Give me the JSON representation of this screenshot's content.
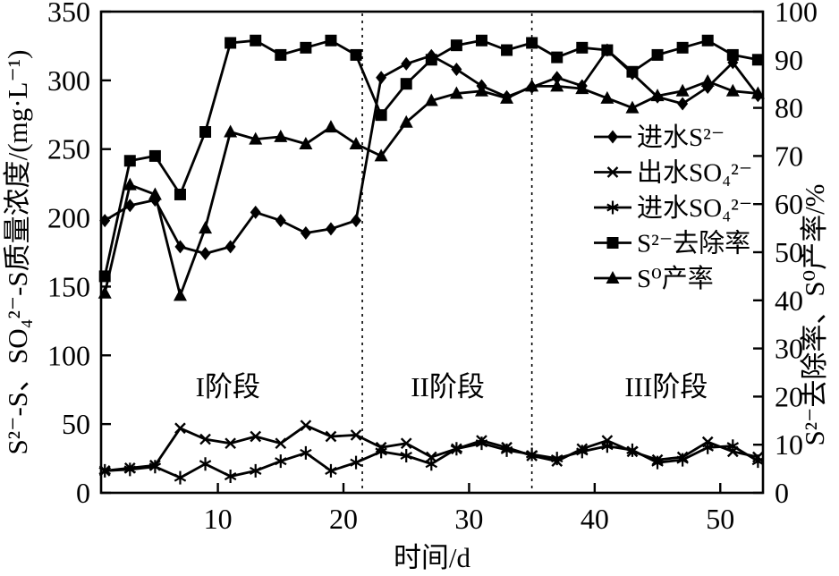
{
  "chart_data": {
    "type": "line",
    "xlabel": "时间/d",
    "ylabel_left": "S²⁻-S、SO₄²⁻-S质量浓度/(mg·L⁻¹)",
    "ylabel_right": "S²⁻去除率、S⁰产率/%",
    "x": [
      1,
      3,
      5,
      7,
      9,
      11,
      13,
      15,
      17,
      19,
      21,
      23,
      25,
      27,
      29,
      31,
      33,
      35,
      37,
      39,
      41,
      43,
      45,
      47,
      49,
      51,
      53
    ],
    "x_ticks": [
      10,
      20,
      30,
      40,
      50
    ],
    "x_range_days": [
      0.7,
      53.4
    ],
    "left_axis": {
      "min": 0,
      "max": 350,
      "ticks": [
        0,
        50,
        100,
        150,
        200,
        250,
        300,
        350
      ]
    },
    "right_axis": {
      "min": 0,
      "max": 100,
      "ticks": [
        0,
        10,
        20,
        30,
        40,
        50,
        60,
        70,
        80,
        90,
        100
      ]
    },
    "grid": false,
    "legend_position": "inside-right",
    "series": [
      {
        "name": "进水S²⁻",
        "marker": "diamond",
        "axis": "left",
        "values": [
          198,
          209,
          213,
          179,
          174,
          179,
          204,
          198,
          189,
          192,
          198,
          302,
          312,
          318,
          308,
          296,
          288,
          295,
          302,
          296,
          322,
          305,
          288,
          283,
          295,
          313,
          289
        ]
      },
      {
        "name": "出水SO₄²⁻",
        "marker": "x",
        "axis": "left",
        "values": [
          16,
          18,
          20,
          47,
          39,
          36,
          41,
          36,
          49,
          41,
          42,
          33,
          36,
          26,
          32,
          38,
          33,
          27,
          23,
          32,
          38,
          30,
          24,
          26,
          37,
          30,
          26
        ]
      },
      {
        "name": "进水SO₄²⁻",
        "marker": "asterisk",
        "axis": "left",
        "values": [
          16,
          17,
          19,
          11,
          21,
          12,
          16,
          23,
          29,
          16,
          22,
          30,
          27,
          21,
          32,
          36,
          31,
          28,
          25,
          30,
          34,
          31,
          22,
          24,
          33,
          34,
          23
        ]
      },
      {
        "name": "S²⁻去除率",
        "marker": "square",
        "axis": "right",
        "values": [
          45,
          69,
          70,
          62,
          75,
          93.5,
          94,
          91,
          92.5,
          94,
          91,
          78.5,
          85,
          90,
          93,
          94,
          92,
          93.5,
          90.5,
          92.5,
          92,
          87.5,
          91,
          92.5,
          94,
          91,
          90
        ]
      },
      {
        "name": "S⁰产率",
        "marker": "triangle",
        "axis": "right",
        "values": [
          41.5,
          64,
          62,
          41,
          55,
          75,
          73.5,
          74,
          72.5,
          76,
          72.5,
          70,
          77,
          81.5,
          83,
          83.5,
          82,
          84.5,
          84.5,
          84,
          82,
          80,
          82.5,
          83.5,
          85.5,
          83.5,
          83
        ]
      }
    ],
    "phase_boundaries_day": [
      21.5,
      35.0
    ],
    "phases": [
      {
        "label": "I阶段",
        "day": 10.8
      },
      {
        "label": "II阶段",
        "day": 28.3
      },
      {
        "label": "III阶段",
        "day": 45.7
      }
    ],
    "colors": {
      "ink": "#000000",
      "background": "#ffffff"
    }
  }
}
